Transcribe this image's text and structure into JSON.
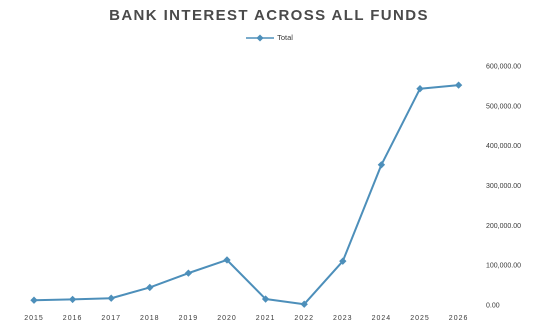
{
  "chart_data": {
    "type": "line",
    "title": "BANK INTEREST ACROSS ALL FUNDS",
    "legend_position": "top-center",
    "grid": false,
    "x": [
      "2015",
      "2016",
      "2017",
      "2018",
      "2019",
      "2020",
      "2021",
      "2022",
      "2023",
      "2024",
      "2025",
      "2026"
    ],
    "series": [
      {
        "name": "Total",
        "color": "#4d8fba",
        "values": [
          12000,
          14000,
          17000,
          44000,
          80000,
          113000,
          15000,
          2000,
          110000,
          352000,
          543000,
          552000
        ]
      }
    ],
    "y_ticks": [
      "0.00",
      "100,000.00",
      "200,000.00",
      "300,000.00",
      "400,000.00",
      "500,000.00",
      "600,000.00"
    ],
    "ylim": [
      0,
      600000
    ],
    "y_axis_side": "right"
  }
}
